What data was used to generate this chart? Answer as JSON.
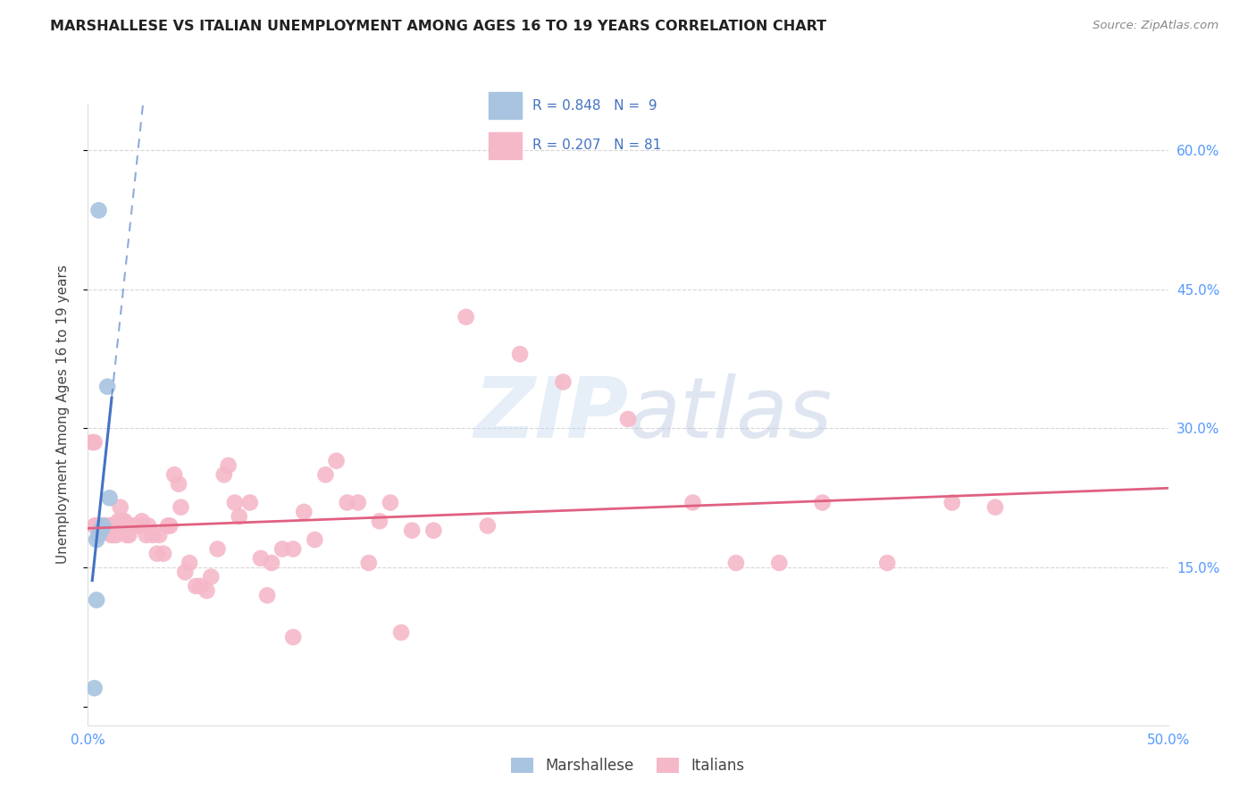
{
  "title": "MARSHALLESE VS ITALIAN UNEMPLOYMENT AMONG AGES 16 TO 19 YEARS CORRELATION CHART",
  "source": "Source: ZipAtlas.com",
  "ylabel": "Unemployment Among Ages 16 to 19 years",
  "xlim": [
    0.0,
    0.5
  ],
  "ylim": [
    -0.02,
    0.65
  ],
  "yticks": [
    0.0,
    0.15,
    0.3,
    0.45,
    0.6
  ],
  "ytick_labels_right": [
    "",
    "15.0%",
    "30.0%",
    "45.0%",
    "60.0%"
  ],
  "background_color": "#ffffff",
  "grid_color": "#cccccc",
  "marshallese_color": "#a8c4e0",
  "italian_color": "#f5b8c8",
  "marshallese_line_color": "#4472c4",
  "italian_line_color": "#e06080",
  "marshallese_points": [
    [
      0.005,
      0.535
    ],
    [
      0.009,
      0.345
    ],
    [
      0.01,
      0.225
    ],
    [
      0.007,
      0.195
    ],
    [
      0.006,
      0.19
    ],
    [
      0.005,
      0.185
    ],
    [
      0.004,
      0.18
    ],
    [
      0.004,
      0.115
    ],
    [
      0.003,
      0.02
    ]
  ],
  "italian_points": [
    [
      0.002,
      0.285
    ],
    [
      0.003,
      0.285
    ],
    [
      0.003,
      0.195
    ],
    [
      0.004,
      0.195
    ],
    [
      0.004,
      0.195
    ],
    [
      0.005,
      0.195
    ],
    [
      0.005,
      0.195
    ],
    [
      0.006,
      0.195
    ],
    [
      0.006,
      0.195
    ],
    [
      0.007,
      0.195
    ],
    [
      0.007,
      0.195
    ],
    [
      0.008,
      0.195
    ],
    [
      0.008,
      0.195
    ],
    [
      0.009,
      0.195
    ],
    [
      0.009,
      0.195
    ],
    [
      0.01,
      0.195
    ],
    [
      0.01,
      0.195
    ],
    [
      0.011,
      0.185
    ],
    [
      0.011,
      0.185
    ],
    [
      0.012,
      0.185
    ],
    [
      0.013,
      0.185
    ],
    [
      0.014,
      0.2
    ],
    [
      0.015,
      0.215
    ],
    [
      0.016,
      0.2
    ],
    [
      0.017,
      0.2
    ],
    [
      0.018,
      0.185
    ],
    [
      0.019,
      0.185
    ],
    [
      0.02,
      0.195
    ],
    [
      0.022,
      0.195
    ],
    [
      0.024,
      0.195
    ],
    [
      0.025,
      0.2
    ],
    [
      0.027,
      0.185
    ],
    [
      0.028,
      0.195
    ],
    [
      0.03,
      0.185
    ],
    [
      0.032,
      0.165
    ],
    [
      0.033,
      0.185
    ],
    [
      0.035,
      0.165
    ],
    [
      0.037,
      0.195
    ],
    [
      0.038,
      0.195
    ],
    [
      0.04,
      0.25
    ],
    [
      0.042,
      0.24
    ],
    [
      0.043,
      0.215
    ],
    [
      0.045,
      0.145
    ],
    [
      0.047,
      0.155
    ],
    [
      0.05,
      0.13
    ],
    [
      0.052,
      0.13
    ],
    [
      0.055,
      0.125
    ],
    [
      0.057,
      0.14
    ],
    [
      0.06,
      0.17
    ],
    [
      0.063,
      0.25
    ],
    [
      0.065,
      0.26
    ],
    [
      0.068,
      0.22
    ],
    [
      0.07,
      0.205
    ],
    [
      0.075,
      0.22
    ],
    [
      0.08,
      0.16
    ],
    [
      0.083,
      0.12
    ],
    [
      0.085,
      0.155
    ],
    [
      0.09,
      0.17
    ],
    [
      0.095,
      0.17
    ],
    [
      0.1,
      0.21
    ],
    [
      0.105,
      0.18
    ],
    [
      0.11,
      0.25
    ],
    [
      0.115,
      0.265
    ],
    [
      0.12,
      0.22
    ],
    [
      0.125,
      0.22
    ],
    [
      0.13,
      0.155
    ],
    [
      0.135,
      0.2
    ],
    [
      0.14,
      0.22
    ],
    [
      0.145,
      0.08
    ],
    [
      0.15,
      0.19
    ],
    [
      0.16,
      0.19
    ],
    [
      0.175,
      0.42
    ],
    [
      0.185,
      0.195
    ],
    [
      0.2,
      0.38
    ],
    [
      0.22,
      0.35
    ],
    [
      0.25,
      0.31
    ],
    [
      0.28,
      0.22
    ],
    [
      0.3,
      0.155
    ],
    [
      0.32,
      0.155
    ],
    [
      0.34,
      0.22
    ],
    [
      0.37,
      0.155
    ],
    [
      0.4,
      0.22
    ],
    [
      0.42,
      0.215
    ],
    [
      0.095,
      0.075
    ]
  ]
}
